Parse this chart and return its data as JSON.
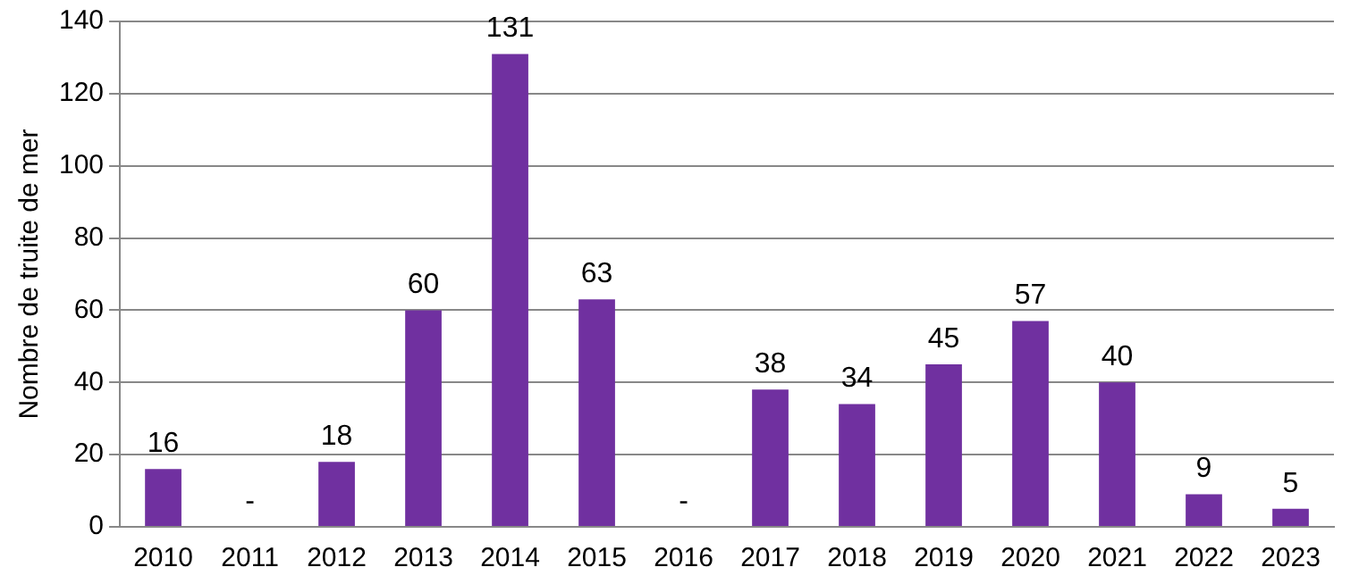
{
  "chart_data": {
    "type": "bar",
    "ylabel": "Nombre de truite de mer",
    "categories": [
      "2010",
      "2011",
      "2012",
      "2013",
      "2014",
      "2015",
      "2016",
      "2017",
      "2018",
      "2019",
      "2020",
      "2021",
      "2022",
      "2023"
    ],
    "values": [
      16,
      null,
      18,
      60,
      131,
      63,
      null,
      38,
      34,
      45,
      57,
      40,
      9,
      5
    ],
    "value_labels": [
      "16",
      "-",
      "18",
      "60",
      "131",
      "63",
      "-",
      "38",
      "34",
      "45",
      "57",
      "40",
      "9",
      "5"
    ],
    "color": "#7030a0",
    "ylim": [
      0,
      140
    ],
    "yticks": [
      0,
      20,
      40,
      60,
      80,
      100,
      120,
      140
    ],
    "grid": "y",
    "legend": false
  }
}
